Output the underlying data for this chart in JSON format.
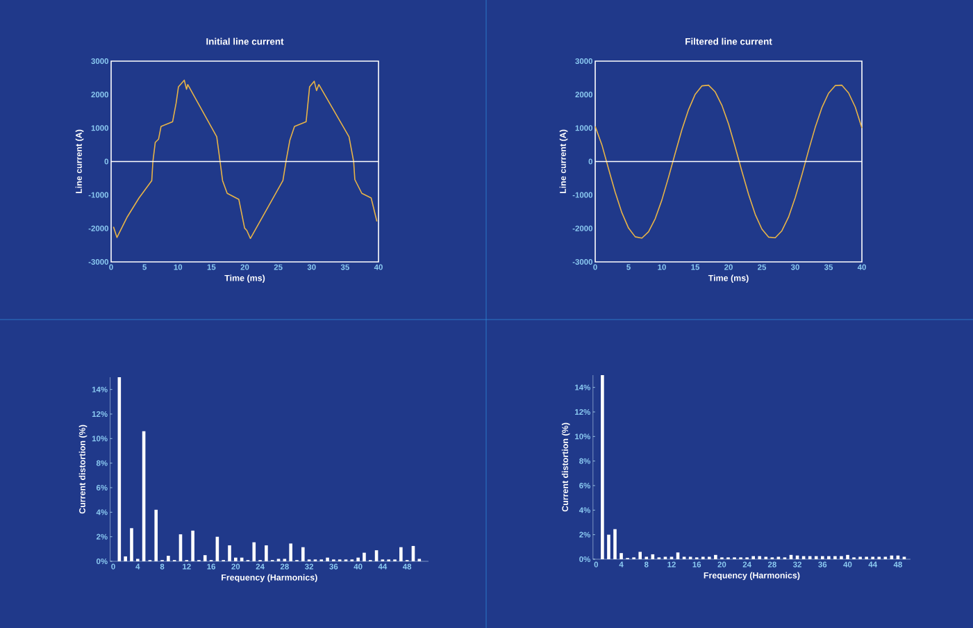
{
  "chart_data": [
    {
      "type": "line",
      "title": "Initial line current",
      "xlabel": "Time (ms)",
      "ylabel": "Line current (A)",
      "color": "#e8b447",
      "x": [
        0.35,
        0.87,
        2.43,
        4.17,
        6.08,
        6.25,
        6.6,
        7.1,
        7.47,
        9.2,
        9.72,
        10.07,
        10.94,
        11.28,
        11.46,
        15.8,
        16.3,
        16.67,
        17.36,
        19.1,
        19.97,
        20.3,
        20.83,
        25.7,
        26.2,
        26.74,
        27.43,
        29.17,
        29.69,
        30.38,
        30.73,
        31.07,
        35.59,
        36.28,
        36.46,
        37.5,
        38.9,
        39.76
      ],
      "values": [
        -1950,
        -2270,
        -1650,
        -1090,
        -570,
        0,
        570,
        670,
        1050,
        1190,
        1740,
        2230,
        2430,
        2160,
        2300,
        740,
        0,
        -570,
        -950,
        -1130,
        -1990,
        -2060,
        -2300,
        -570,
        50,
        640,
        1050,
        1190,
        2230,
        2400,
        2120,
        2300,
        740,
        0,
        -540,
        -950,
        -1090,
        -1790
      ],
      "xlim": [
        0,
        40
      ],
      "ylim": [
        -3000,
        3000
      ],
      "xticks": [
        0,
        5,
        10,
        15,
        20,
        25,
        30,
        35,
        40
      ],
      "yticks": [
        -3000,
        -2000,
        -1000,
        0,
        1000,
        2000,
        3000
      ],
      "ref_lines": [
        {
          "axis": "y",
          "value": 0,
          "color": "#ffffff"
        }
      ]
    },
    {
      "type": "line",
      "title": "Filtered line current",
      "xlabel": "Time (ms)",
      "ylabel": "Line current (A)",
      "color": "#e8b447",
      "x": [
        0,
        1,
        2,
        3,
        4,
        5,
        6,
        7,
        8,
        9,
        10,
        11,
        12,
        13,
        14,
        15,
        16,
        17,
        18,
        19,
        20,
        21,
        22,
        23,
        24,
        25,
        26,
        27,
        28,
        29,
        30,
        31,
        32,
        33,
        34,
        35,
        36,
        37,
        38,
        39,
        40
      ],
      "values": [
        1050,
        500,
        -220,
        -920,
        -1530,
        -1990,
        -2250,
        -2290,
        -2100,
        -1710,
        -1150,
        -470,
        250,
        950,
        1550,
        2010,
        2260,
        2280,
        2080,
        1680,
        1120,
        430,
        -290,
        -980,
        -1580,
        -2020,
        -2260,
        -2280,
        -2070,
        -1660,
        -1080,
        -400,
        330,
        1020,
        1610,
        2040,
        2270,
        2280,
        2050,
        1630,
        1000
      ],
      "xlim": [
        0,
        40
      ],
      "ylim": [
        -3000,
        3000
      ],
      "xticks": [
        0,
        5,
        10,
        15,
        20,
        25,
        30,
        35,
        40
      ],
      "yticks": [
        -3000,
        -2000,
        -1000,
        0,
        1000,
        2000,
        3000
      ],
      "ref_lines": [
        {
          "axis": "y",
          "value": 0,
          "color": "#ffffff"
        }
      ]
    },
    {
      "type": "bar",
      "xlabel": "Frequency (Harmonics)",
      "ylabel": "Current distortion (%)",
      "color": "#ffffff",
      "x": [
        1,
        2,
        3,
        4,
        5,
        6,
        7,
        8,
        9,
        10,
        11,
        12,
        13,
        14,
        15,
        16,
        17,
        18,
        19,
        20,
        21,
        22,
        23,
        24,
        25,
        26,
        27,
        28,
        29,
        30,
        31,
        32,
        33,
        34,
        35,
        36,
        37,
        38,
        39,
        40,
        41,
        42,
        43,
        44,
        45,
        46,
        47,
        48,
        49,
        50
      ],
      "values": [
        15,
        0.4,
        2.7,
        0.2,
        10.6,
        0.1,
        4.2,
        0.1,
        0.45,
        0.1,
        2.2,
        0.1,
        2.5,
        0.1,
        0.5,
        0.1,
        2.0,
        0.1,
        1.3,
        0.3,
        0.3,
        0.1,
        1.55,
        0.1,
        1.3,
        0.1,
        0.2,
        0.2,
        1.45,
        0.1,
        1.15,
        0.15,
        0.15,
        0.15,
        0.3,
        0.15,
        0.15,
        0.15,
        0.15,
        0.3,
        0.7,
        0.1,
        0.9,
        0.15,
        0.15,
        0.15,
        1.15,
        0.1,
        1.25,
        0.2
      ],
      "xlim": [
        -0.5,
        51.5
      ],
      "ylim": [
        0,
        15
      ],
      "xticks": [
        0,
        4,
        8,
        12,
        16,
        20,
        24,
        28,
        32,
        36,
        40,
        44,
        48
      ],
      "yticks": [
        {
          "value": 0,
          "label": "0%"
        },
        {
          "value": 2,
          "label": "2%"
        },
        {
          "value": 4,
          "label": "4%"
        },
        {
          "value": 6,
          "label": "6%"
        },
        {
          "value": 8,
          "label": "8%"
        },
        {
          "value": 10,
          "label": "10%"
        },
        {
          "value": 12,
          "label": "12%"
        },
        {
          "value": 14,
          "label": "14%"
        }
      ]
    },
    {
      "type": "bar",
      "xlabel": "Frequency (Harmonics)",
      "ylabel": "Current distortion (%)",
      "color": "#ffffff",
      "x": [
        1,
        2,
        3,
        4,
        5,
        6,
        7,
        8,
        9,
        10,
        11,
        12,
        13,
        14,
        15,
        16,
        17,
        18,
        19,
        20,
        21,
        22,
        23,
        24,
        25,
        26,
        27,
        28,
        29,
        30,
        31,
        32,
        33,
        34,
        35,
        36,
        37,
        38,
        39,
        40,
        41,
        42,
        43,
        44,
        45,
        46,
        47,
        48,
        49
      ],
      "values": [
        15,
        2.0,
        2.45,
        0.5,
        0.1,
        0.15,
        0.6,
        0.2,
        0.4,
        0.15,
        0.2,
        0.2,
        0.55,
        0.2,
        0.2,
        0.15,
        0.2,
        0.2,
        0.35,
        0.15,
        0.15,
        0.15,
        0.15,
        0.15,
        0.25,
        0.25,
        0.2,
        0.15,
        0.2,
        0.15,
        0.35,
        0.3,
        0.25,
        0.25,
        0.25,
        0.25,
        0.25,
        0.25,
        0.25,
        0.35,
        0.15,
        0.2,
        0.2,
        0.2,
        0.2,
        0.2,
        0.3,
        0.3,
        0.2
      ],
      "xlim": [
        -0.5,
        50
      ],
      "ylim": [
        0,
        15
      ],
      "xticks": [
        0,
        4,
        8,
        12,
        16,
        20,
        24,
        28,
        32,
        36,
        40,
        44,
        48
      ],
      "yticks": [
        {
          "value": 0,
          "label": "0%"
        },
        {
          "value": 2,
          "label": "2%"
        },
        {
          "value": 4,
          "label": "4%"
        },
        {
          "value": 6,
          "label": "6%"
        },
        {
          "value": 8,
          "label": "8%"
        },
        {
          "value": 10,
          "label": "10%"
        },
        {
          "value": 12,
          "label": "12%"
        },
        {
          "value": 14,
          "label": "14%"
        }
      ]
    }
  ]
}
